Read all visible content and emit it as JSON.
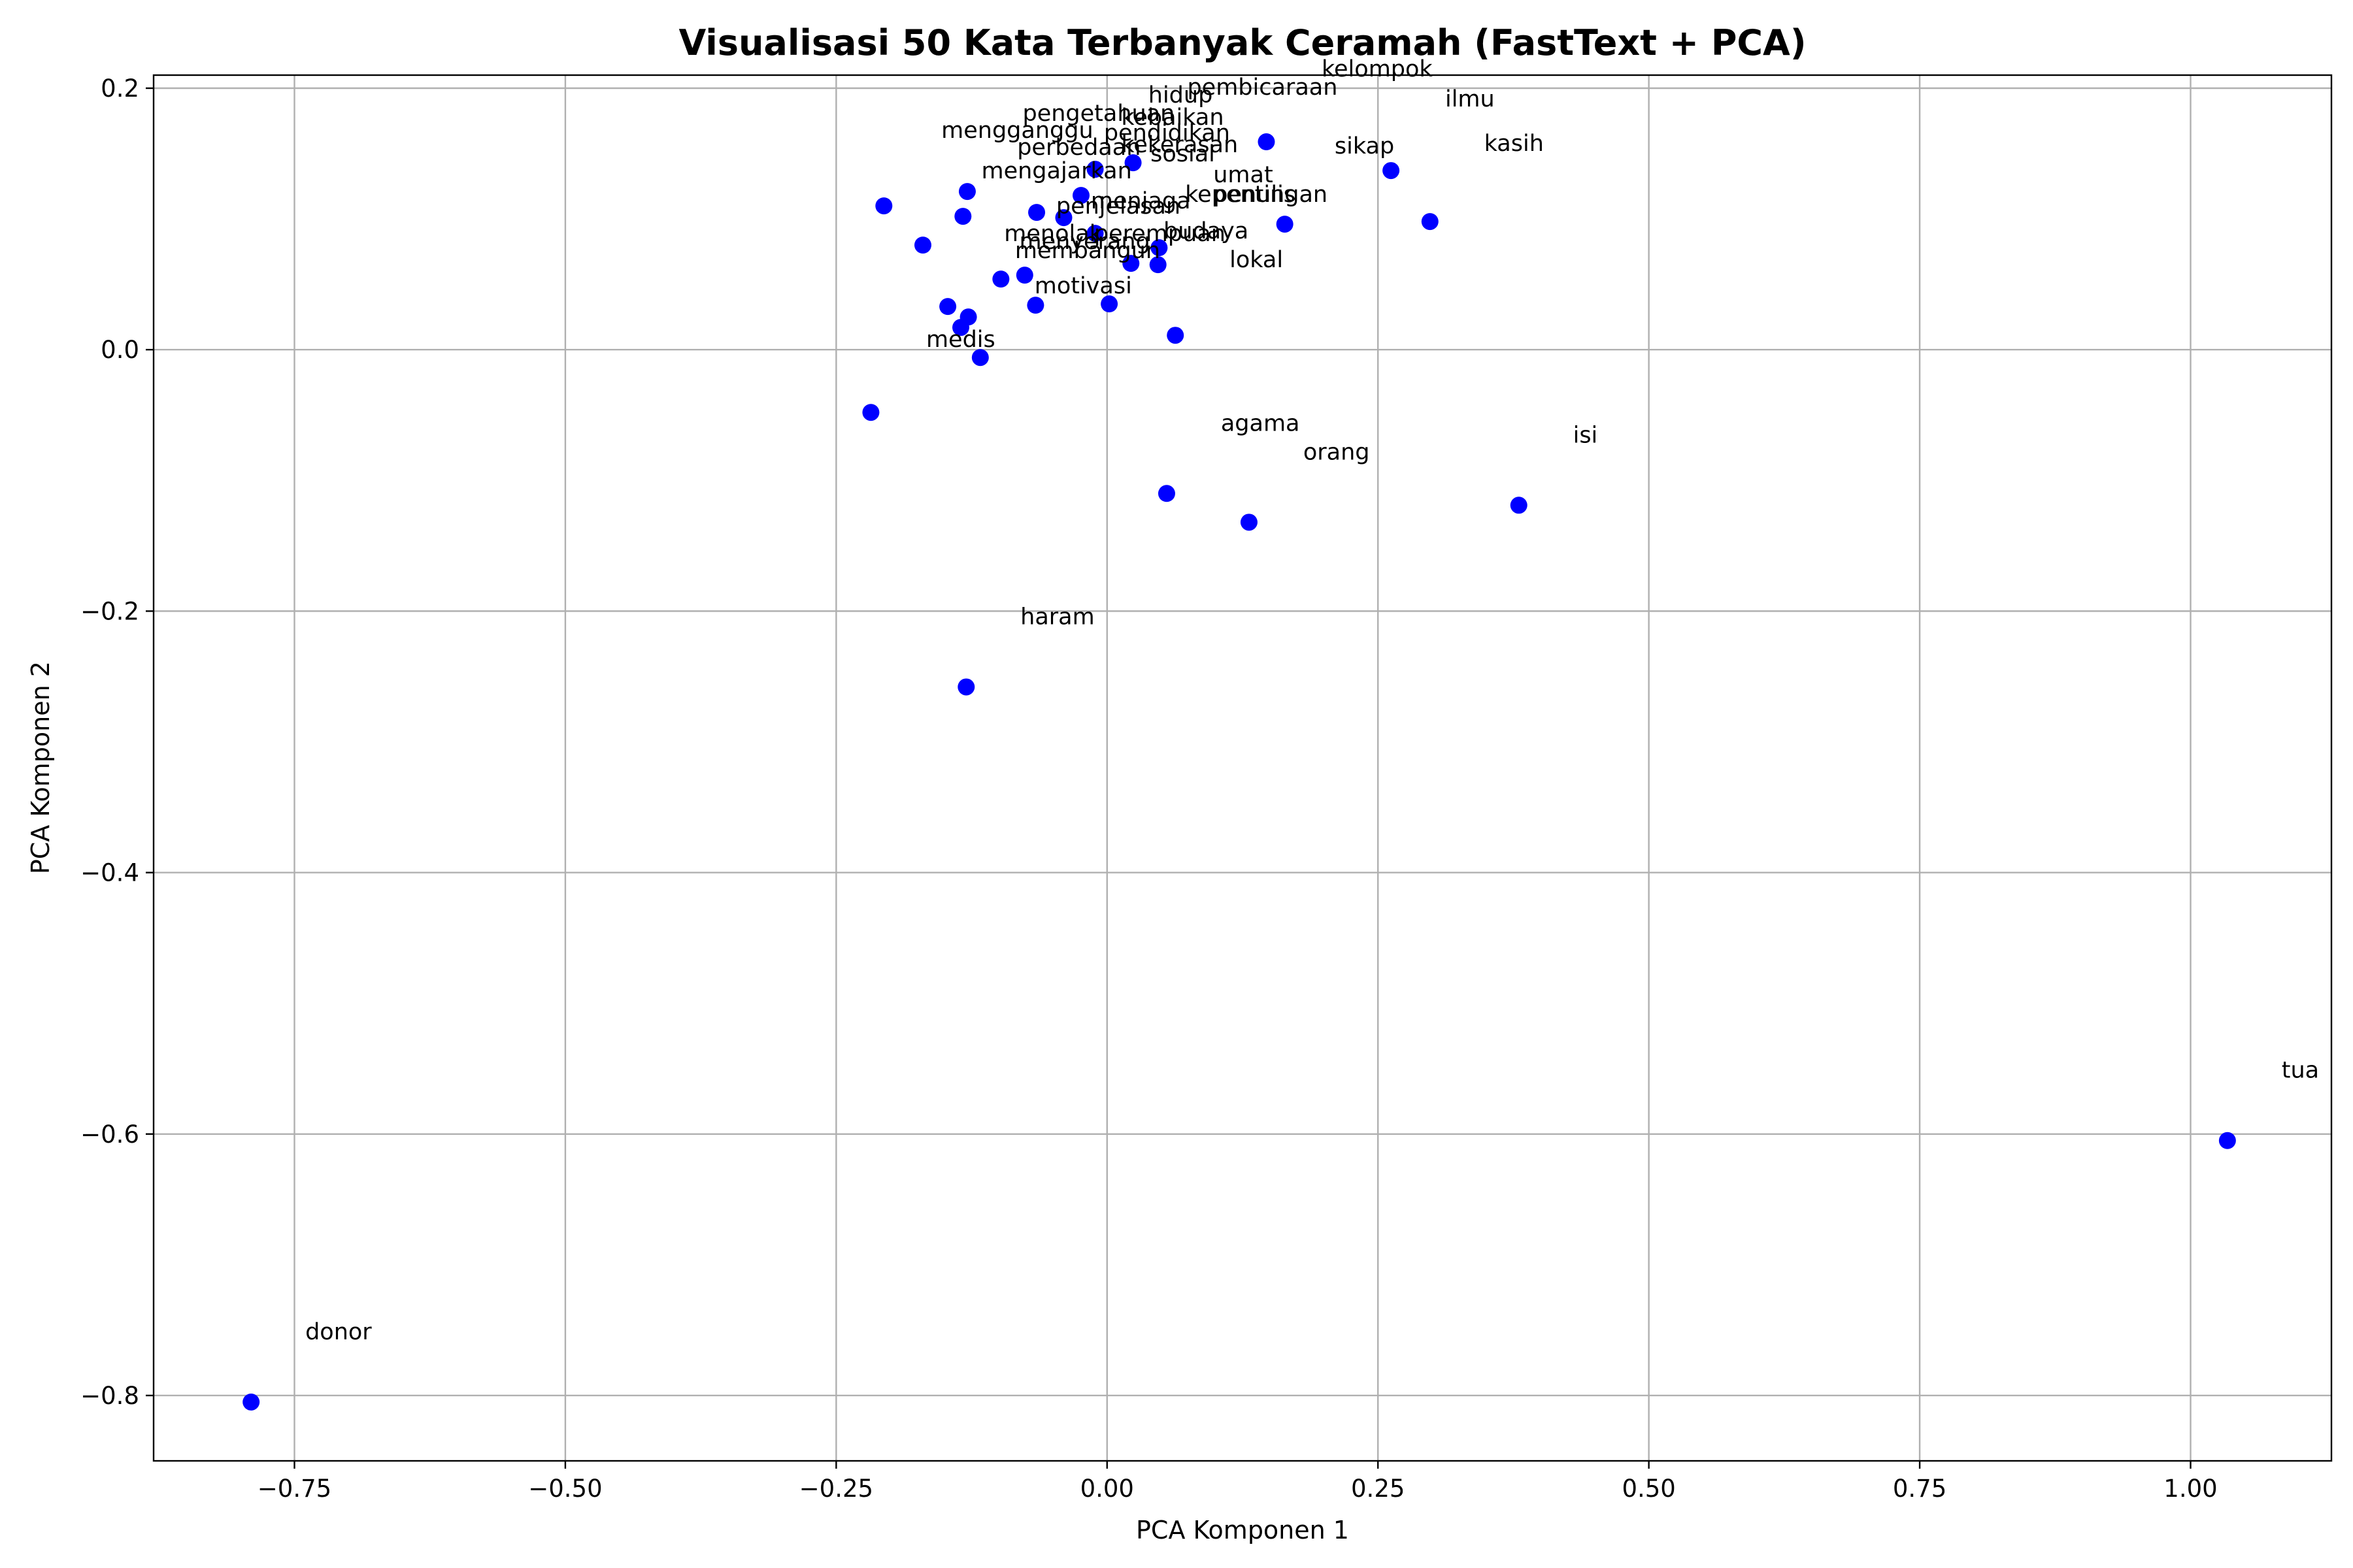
{
  "chart_data": {
    "type": "scatter",
    "title": "Visualisasi 50 Kata Terbanyak Ceramah (FastText + PCA)",
    "xlabel": "PCA Komponen 1",
    "ylabel": "PCA Komponen 2",
    "xlim": [
      -0.88,
      1.13
    ],
    "ylim": [
      -0.85,
      0.21
    ],
    "x_ticks": [
      -0.75,
      -0.5,
      -0.25,
      0.0,
      0.25,
      0.5,
      0.75,
      1.0
    ],
    "x_tick_labels": [
      "−0.75",
      "−0.50",
      "−0.25",
      "0.00",
      "0.25",
      "0.50",
      "0.75",
      "1.00"
    ],
    "y_ticks": [
      0.2,
      0.0,
      -0.2,
      -0.4,
      -0.6,
      -0.8
    ],
    "y_tick_labels": [
      "0.2",
      "0.0",
      "−0.2",
      "−0.4",
      "−0.6",
      "−0.8"
    ],
    "grid": true,
    "marker_color": "#0000ff",
    "points": [
      {
        "x": -0.79,
        "y": -0.805
      },
      {
        "x": 1.034,
        "y": -0.605
      },
      {
        "x": 0.38,
        "y": -0.119
      },
      {
        "x": 0.131,
        "y": -0.132
      },
      {
        "x": 0.055,
        "y": -0.11
      },
      {
        "x": -0.13,
        "y": -0.258
      },
      {
        "x": -0.218,
        "y": -0.048
      },
      {
        "x": -0.117,
        "y": -0.006
      },
      {
        "x": -0.135,
        "y": 0.017
      },
      {
        "x": -0.128,
        "y": 0.025
      },
      {
        "x": -0.147,
        "y": 0.033
      },
      {
        "x": -0.066,
        "y": 0.034
      },
      {
        "x": 0.002,
        "y": 0.035
      },
      {
        "x": 0.063,
        "y": 0.011
      },
      {
        "x": -0.098,
        "y": 0.054
      },
      {
        "x": -0.076,
        "y": 0.057
      },
      {
        "x": 0.022,
        "y": 0.066
      },
      {
        "x": 0.047,
        "y": 0.065
      },
      {
        "x": 0.048,
        "y": 0.078
      },
      {
        "x": -0.011,
        "y": 0.089
      },
      {
        "x": -0.17,
        "y": 0.08
      },
      {
        "x": -0.133,
        "y": 0.102
      },
      {
        "x": -0.206,
        "y": 0.11
      },
      {
        "x": -0.129,
        "y": 0.121
      },
      {
        "x": -0.065,
        "y": 0.105
      },
      {
        "x": -0.04,
        "y": 0.101
      },
      {
        "x": -0.024,
        "y": 0.118
      },
      {
        "x": -0.011,
        "y": 0.138
      },
      {
        "x": 0.024,
        "y": 0.143
      },
      {
        "x": 0.147,
        "y": 0.159
      },
      {
        "x": 0.164,
        "y": 0.096
      },
      {
        "x": 0.262,
        "y": 0.137
      },
      {
        "x": 0.298,
        "y": 0.098
      }
    ],
    "labels": [
      {
        "text": "donor",
        "x": -0.74,
        "y": -0.757
      },
      {
        "text": "tua",
        "x": 1.084,
        "y": -0.557
      },
      {
        "text": "isi",
        "x": 0.43,
        "y": -0.071
      },
      {
        "text": "orang",
        "x": 0.181,
        "y": -0.084
      },
      {
        "text": "agama",
        "x": 0.105,
        "y": -0.062
      },
      {
        "text": "haram",
        "x": -0.08,
        "y": -0.21
      },
      {
        "text": "medis",
        "x": -0.167,
        "y": 0.002
      },
      {
        "text": "motivasi",
        "x": -0.067,
        "y": 0.043
      },
      {
        "text": "membangun",
        "x": -0.085,
        "y": 0.07
      },
      {
        "text": "lokal",
        "x": 0.113,
        "y": 0.063
      },
      {
        "text": "menyerang",
        "x": -0.081,
        "y": 0.077
      },
      {
        "text": "menolak",
        "x": -0.095,
        "y": 0.083
      },
      {
        "text": "perempuan",
        "x": -0.012,
        "y": 0.083
      },
      {
        "text": "budaya",
        "x": 0.052,
        "y": 0.085
      },
      {
        "text": "menjaga",
        "x": -0.015,
        "y": 0.108
      },
      {
        "text": "penjelasan",
        "x": -0.047,
        "y": 0.104
      },
      {
        "text": "kepentingan",
        "x": 0.072,
        "y": 0.113
      },
      {
        "text": "penulis",
        "x": 0.098,
        "y": 0.113
      },
      {
        "text": "umat",
        "x": 0.098,
        "y": 0.128
      },
      {
        "text": "mengajarkan",
        "x": -0.116,
        "y": 0.131
      },
      {
        "text": "perbedaan",
        "x": -0.083,
        "y": 0.149
      },
      {
        "text": "sosial",
        "x": 0.04,
        "y": 0.144
      },
      {
        "text": "kekerasan",
        "x": 0.013,
        "y": 0.151
      },
      {
        "text": "pendidikan",
        "x": -0.003,
        "y": 0.16
      },
      {
        "text": "mengganggu",
        "x": -0.153,
        "y": 0.162
      },
      {
        "text": "pengetahuan",
        "x": -0.078,
        "y": 0.175
      },
      {
        "text": "kebaikan",
        "x": 0.013,
        "y": 0.172
      },
      {
        "text": "hidup",
        "x": 0.038,
        "y": 0.189
      },
      {
        "text": "pembicaraan",
        "x": 0.074,
        "y": 0.195
      },
      {
        "text": "kelompok",
        "x": 0.198,
        "y": 0.209
      },
      {
        "text": "ilmu",
        "x": 0.312,
        "y": 0.186
      },
      {
        "text": "sikap",
        "x": 0.21,
        "y": 0.15
      },
      {
        "text": "kasih",
        "x": 0.348,
        "y": 0.152
      }
    ]
  }
}
